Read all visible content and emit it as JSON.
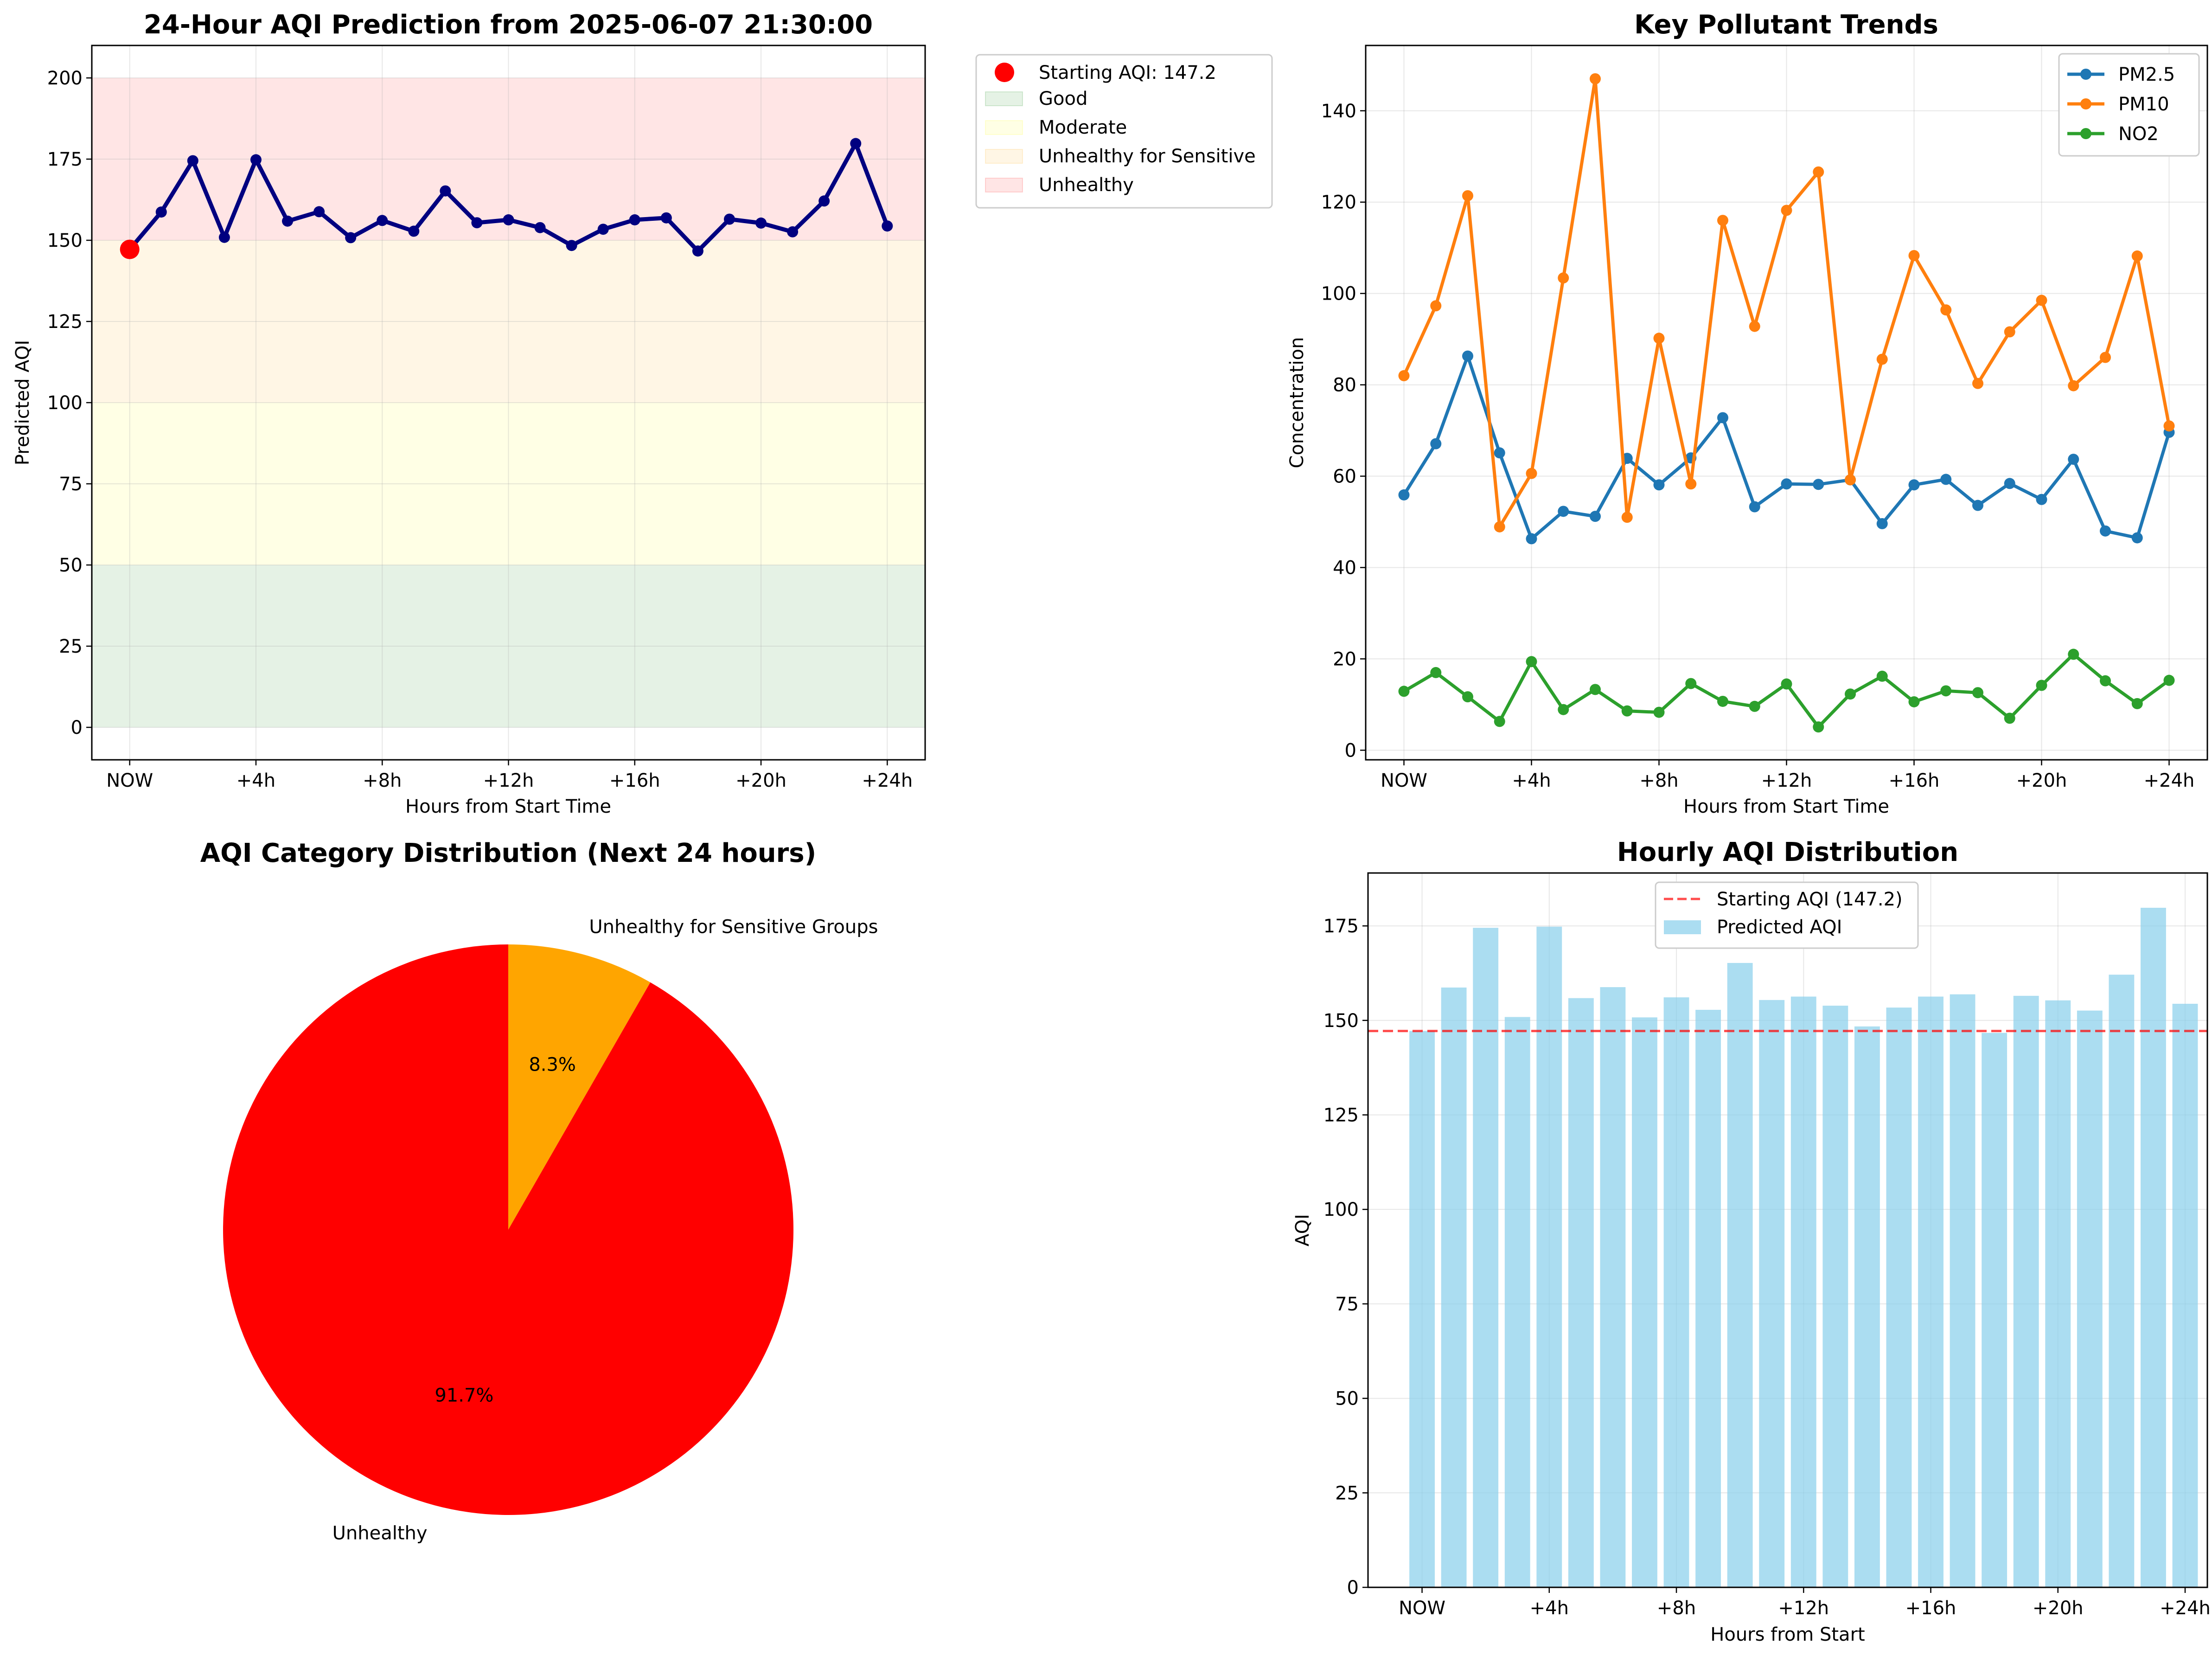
{
  "figure": {
    "colors": {
      "aqi_line": "#000080",
      "start_marker": "#ff0000",
      "band_good": "#008000",
      "band_moderate": "#ffff00",
      "band_sensitive": "#ffa500",
      "band_unhealthy": "#ff0000",
      "pm25": "#1f77b4",
      "pm10": "#ff7f0e",
      "no2": "#2ca02c",
      "bar": "#87ceeb",
      "ref_line": "#ff0000",
      "pie_unhealthy": "#ff0000",
      "pie_sensitive": "#ffa500"
    }
  },
  "chart_data": [
    {
      "type": "line",
      "title": "24-Hour AQI Prediction from 2025-06-07 21:30:00",
      "xlabel": "Hours from Start Time",
      "ylabel": "Predicted AQI",
      "x": [
        0,
        1,
        2,
        3,
        4,
        5,
        6,
        7,
        8,
        9,
        10,
        11,
        12,
        13,
        14,
        15,
        16,
        17,
        18,
        19,
        20,
        21,
        22,
        23,
        24
      ],
      "xticks": [
        0,
        4,
        8,
        12,
        16,
        20,
        24
      ],
      "xtick_labels": [
        "NOW",
        "+4h",
        "+8h",
        "+12h",
        "+16h",
        "+20h",
        "+24h"
      ],
      "xlim": [
        -1.2,
        25.2
      ],
      "ylim": [
        -10,
        210
      ],
      "yticks": [
        0,
        25,
        50,
        75,
        100,
        125,
        150,
        175,
        200
      ],
      "grid": true,
      "legend_position": "outside-right",
      "start_point": {
        "x": 0,
        "y": 147.2,
        "label": "Starting AQI: 147.2"
      },
      "bands": [
        {
          "name": "Good",
          "from": 0,
          "to": 50
        },
        {
          "name": "Moderate",
          "from": 50,
          "to": 100
        },
        {
          "name": "Unhealthy for Sensitive",
          "from": 100,
          "to": 150
        },
        {
          "name": "Unhealthy",
          "from": 150,
          "to": 200
        }
      ],
      "series": [
        {
          "values": [
            147.2,
            158.7,
            174.5,
            150.9,
            174.8,
            155.9,
            158.8,
            150.8,
            156.1,
            152.8,
            165.2,
            155.4,
            156.3,
            153.9,
            148.4,
            153.4,
            156.3,
            156.9,
            146.7,
            156.5,
            155.3,
            152.6,
            162.1,
            179.8,
            154.4
          ]
        }
      ]
    },
    {
      "type": "line",
      "title": "Key Pollutant Trends",
      "xlabel": "Hours from Start Time",
      "ylabel": "Concentration",
      "x": [
        0,
        1,
        2,
        3,
        4,
        5,
        6,
        7,
        8,
        9,
        10,
        11,
        12,
        13,
        14,
        15,
        16,
        17,
        18,
        19,
        20,
        21,
        22,
        23,
        24
      ],
      "xticks": [
        0,
        4,
        8,
        12,
        16,
        20,
        24
      ],
      "xtick_labels": [
        "NOW",
        "+4h",
        "+8h",
        "+12h",
        "+16h",
        "+20h",
        "+24h"
      ],
      "xlim": [
        -1.2,
        25.2
      ],
      "ylim": [
        -2.1,
        154.3
      ],
      "yticks": [
        0,
        20,
        40,
        60,
        80,
        100,
        120,
        140
      ],
      "grid": true,
      "legend_position": "top-right",
      "series": [
        {
          "name": "PM2.5",
          "values": [
            55.9,
            67.1,
            86.3,
            65.1,
            46.3,
            52.3,
            51.2,
            63.9,
            58.1,
            64.0,
            72.8,
            53.3,
            58.3,
            58.2,
            59.2,
            49.6,
            58.1,
            59.3,
            53.6,
            58.4,
            54.9,
            63.7,
            48.0,
            46.5,
            69.6
          ]
        },
        {
          "name": "PM10",
          "values": [
            82.0,
            97.3,
            121.4,
            48.9,
            60.6,
            103.4,
            147.0,
            51.0,
            90.2,
            58.3,
            116.0,
            92.8,
            118.2,
            126.6,
            59.2,
            85.6,
            108.3,
            96.4,
            80.3,
            91.6,
            98.5,
            79.8,
            86.0,
            108.2,
            71.0
          ]
        },
        {
          "name": "NO2",
          "values": [
            12.9,
            17.0,
            11.7,
            6.3,
            19.4,
            8.9,
            13.3,
            8.6,
            8.3,
            14.6,
            10.7,
            9.6,
            14.5,
            5.1,
            12.3,
            16.2,
            10.6,
            13.0,
            12.6,
            7.0,
            14.2,
            21.0,
            15.2,
            10.2,
            15.3
          ]
        }
      ]
    },
    {
      "type": "pie",
      "title": "AQI Category Distribution (Next 24 hours)",
      "labels": [
        "Unhealthy",
        "Unhealthy for Sensitive Groups"
      ],
      "values": [
        91.7,
        8.3
      ],
      "pct_labels": [
        "91.7%",
        "8.3%"
      ]
    },
    {
      "type": "bar",
      "title": "Hourly AQI Distribution",
      "xlabel": "Hours from Start",
      "ylabel": "AQI",
      "x": [
        0,
        1,
        2,
        3,
        4,
        5,
        6,
        7,
        8,
        9,
        10,
        11,
        12,
        13,
        14,
        15,
        16,
        17,
        18,
        19,
        20,
        21,
        22,
        23,
        24
      ],
      "xticks": [
        0,
        4,
        8,
        12,
        16,
        20,
        24
      ],
      "xtick_labels": [
        "NOW",
        "+4h",
        "+8h",
        "+12h",
        "+16h",
        "+20h",
        "+24h"
      ],
      "xlim": [
        -1.7,
        24.7
      ],
      "ylim": [
        0,
        189
      ],
      "yticks": [
        0,
        25,
        50,
        75,
        100,
        125,
        150,
        175
      ],
      "grid": true,
      "legend_position": "top-center",
      "reference_line": {
        "value": 147.2,
        "label": "Starting AQI (147.2)"
      },
      "series": [
        {
          "name": "Predicted AQI",
          "values": [
            147.2,
            158.7,
            174.5,
            150.9,
            174.8,
            155.9,
            158.8,
            150.8,
            156.1,
            152.8,
            165.2,
            155.4,
            156.3,
            153.9,
            148.4,
            153.4,
            156.3,
            156.9,
            146.7,
            156.5,
            155.3,
            152.6,
            162.1,
            179.8,
            154.4
          ]
        }
      ]
    }
  ]
}
